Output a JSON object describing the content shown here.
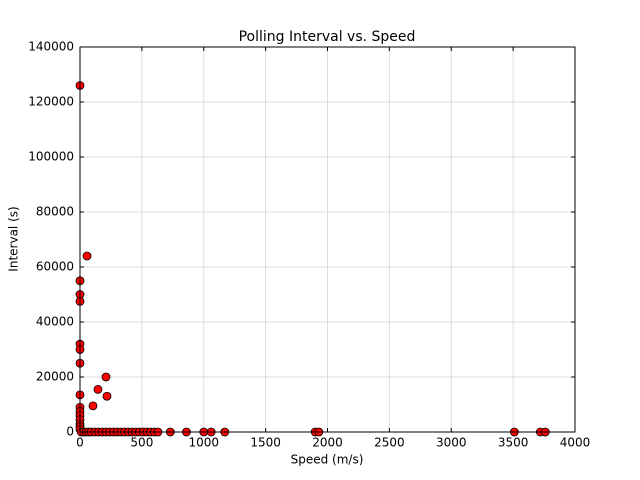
{
  "chart_data": {
    "type": "scatter",
    "title": "Polling Interval vs. Speed",
    "x_label": "Speed (m/s)",
    "y_label": "Interval (s)",
    "x": [
      0,
      0,
      0,
      0,
      0,
      0,
      0,
      0,
      0,
      0,
      0,
      0,
      0,
      0,
      0,
      57,
      210,
      145,
      218,
      105,
      10,
      30,
      50,
      70,
      90,
      120,
      150,
      180,
      210,
      240,
      270,
      300,
      330,
      360,
      390,
      420,
      450,
      480,
      510,
      540,
      570,
      600,
      630,
      730,
      860,
      1000,
      1060,
      1170,
      1900,
      1930,
      3510,
      3720,
      3760
    ],
    "values": [
      126000,
      55000,
      50000,
      47500,
      32000,
      30000,
      25000,
      13500,
      9000,
      7500,
      6000,
      4500,
      3000,
      2000,
      1000,
      64000,
      20000,
      15500,
      13000,
      9500,
      0,
      0,
      0,
      0,
      0,
      0,
      0,
      0,
      0,
      0,
      0,
      0,
      0,
      0,
      0,
      0,
      0,
      0,
      0,
      0,
      0,
      0,
      0,
      0,
      0,
      0,
      0,
      0,
      0,
      0,
      0,
      0,
      0
    ],
    "color": "#ff0000",
    "edgecolor": "#000000",
    "xlim": [
      0,
      4000
    ],
    "xticks": [
      0,
      500,
      1000,
      1500,
      2000,
      2500,
      3000,
      3500,
      4000
    ],
    "ylim": [
      0,
      140000
    ],
    "yticks": [
      0,
      20000,
      40000,
      60000,
      80000,
      100000,
      120000,
      140000
    ],
    "grid": true
  }
}
